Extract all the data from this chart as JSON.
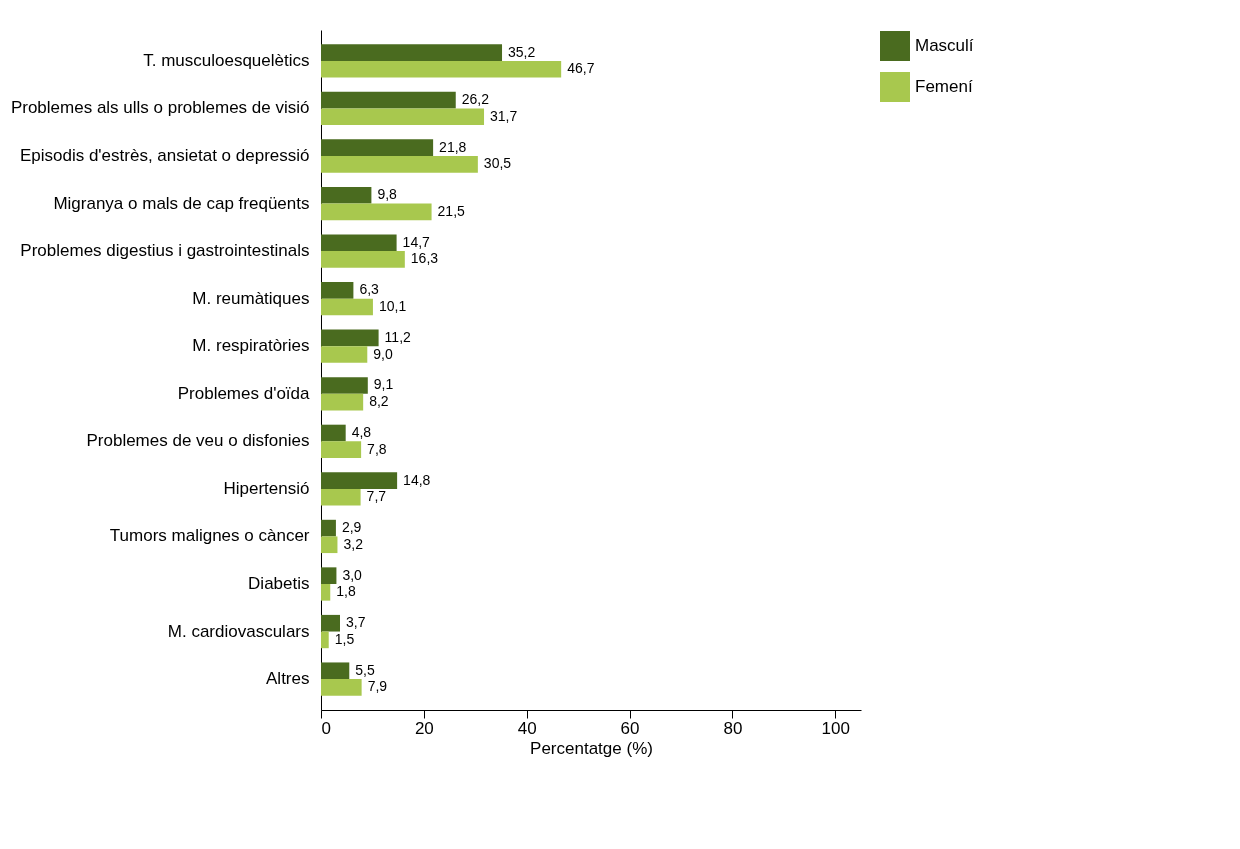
{
  "chart_data": {
    "type": "bar",
    "orientation": "horizontal",
    "xlabel": "Percentatge (%)",
    "categories": [
      "T. musculoesquelètics",
      "Problemes als ulls o problemes de visió",
      "Episodis d'estrès, ansietat o depressió",
      "Migranya o mals de cap freqüents",
      "Problemes digestius i gastrointestinals",
      "M. reumàtiques",
      "M. respiratòries",
      "Problemes d'oïda",
      "Problemes de veu o disfonies",
      "Hipertensió",
      "Tumors malignes o càncer",
      "Diabetis",
      "M. cardiovasculars",
      "Altres"
    ],
    "series": [
      {
        "name": "Masculí",
        "color": "#4a6b1f",
        "values": [
          35.2,
          26.2,
          21.8,
          9.8,
          14.7,
          6.3,
          11.2,
          9.1,
          4.8,
          14.8,
          2.9,
          3.0,
          3.7,
          5.5
        ],
        "value_labels": [
          "35,2",
          "26,2",
          "21,8",
          "9,8",
          "14,7",
          "6,3",
          "11,2",
          "9,1",
          "4,8",
          "14,8",
          "2,9",
          "3,0",
          "3,7",
          "5,5"
        ]
      },
      {
        "name": "Femení",
        "color": "#a8c84e",
        "values": [
          46.7,
          31.7,
          30.5,
          21.5,
          16.3,
          10.1,
          9.0,
          8.2,
          7.8,
          7.7,
          3.2,
          1.8,
          1.5,
          7.9
        ],
        "value_labels": [
          "46,7",
          "31,7",
          "30,5",
          "21,5",
          "16,3",
          "10,1",
          "9,0",
          "8,2",
          "7,8",
          "7,7",
          "3,2",
          "1,8",
          "1,5",
          "7,9"
        ]
      }
    ],
    "xlim": [
      0,
      105
    ],
    "xticks": [
      0,
      20,
      40,
      60,
      80,
      100
    ],
    "grid": false,
    "legend": "right"
  }
}
